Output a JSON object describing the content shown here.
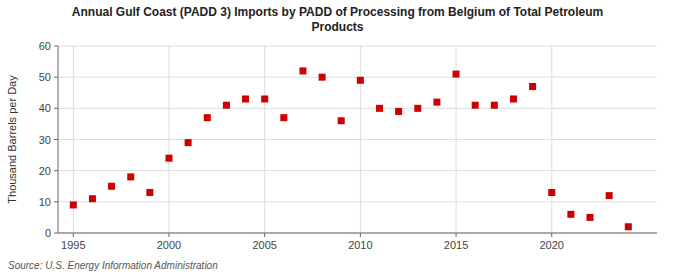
{
  "chart_data": {
    "type": "scatter",
    "title": "Annual Gulf Coast (PADD 3) Imports by PADD of Processing from Belgium of Total Petroleum\nProducts",
    "ylabel": "Thousand Barrels per Day",
    "annotations": [
      "Source: U.S. Energy Information Administration"
    ],
    "x": [
      1995,
      1996,
      1997,
      1998,
      1999,
      2000,
      2001,
      2002,
      2003,
      2004,
      2005,
      2006,
      2007,
      2008,
      2009,
      2010,
      2011,
      2012,
      2013,
      2014,
      2015,
      2016,
      2017,
      2018,
      2019,
      2020,
      2021,
      2022,
      2023,
      2024
    ],
    "values": [
      9,
      11,
      15,
      18,
      13,
      24,
      29,
      37,
      41,
      43,
      43,
      37,
      52,
      50,
      36,
      49,
      40,
      39,
      40,
      42,
      51,
      41,
      41,
      43,
      47,
      13,
      6,
      5,
      12,
      2
    ],
    "color": "#cc0000",
    "marker": "square",
    "xlim": [
      1994.2,
      2025.5
    ],
    "xticks": [
      1995,
      2000,
      2005,
      2010,
      2015,
      2020
    ],
    "ylim": [
      0,
      60
    ],
    "yticks": [
      0,
      10,
      20,
      30,
      40,
      50,
      60
    ],
    "grid": true
  }
}
